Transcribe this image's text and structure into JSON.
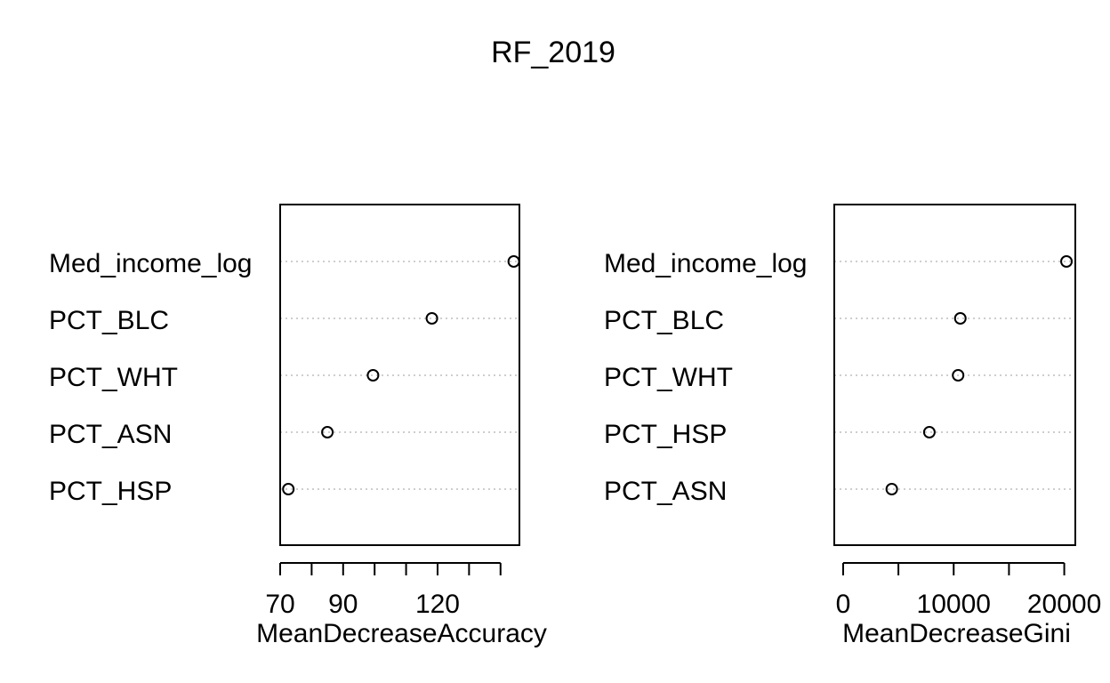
{
  "title": "RF_2019",
  "chart_data": [
    {
      "type": "scatter",
      "subtype": "dotchart",
      "categories": [
        "Med_income_log",
        "PCT_BLC",
        "PCT_WHT",
        "PCT_ASN",
        "PCT_HSP"
      ],
      "values": [
        144.2,
        118.2,
        99.5,
        85.0,
        72.6
      ],
      "xlabel": "MeanDecreaseAccuracy",
      "xlim": [
        70,
        146
      ],
      "x_ticks": [
        70,
        80,
        90,
        100,
        110,
        120,
        130,
        140
      ],
      "x_tick_labels": [
        "70",
        "90",
        "120"
      ],
      "x_tick_label_values": [
        70,
        90,
        120
      ],
      "marker": "open-circle",
      "guide_lines": "dotted"
    },
    {
      "type": "scatter",
      "subtype": "dotchart",
      "categories": [
        "Med_income_log",
        "PCT_BLC",
        "PCT_WHT",
        "PCT_HSP",
        "PCT_ASN"
      ],
      "values": [
        20200,
        10600,
        10400,
        7800,
        4400
      ],
      "xlabel": "MeanDecreaseGini",
      "xlim": [
        -800,
        21000
      ],
      "x_ticks": [
        0,
        5000,
        10000,
        15000,
        20000
      ],
      "x_tick_labels": [
        "0",
        "10000",
        "20000"
      ],
      "x_tick_label_values": [
        0,
        10000,
        20000
      ],
      "marker": "open-circle",
      "guide_lines": "dotted"
    }
  ]
}
